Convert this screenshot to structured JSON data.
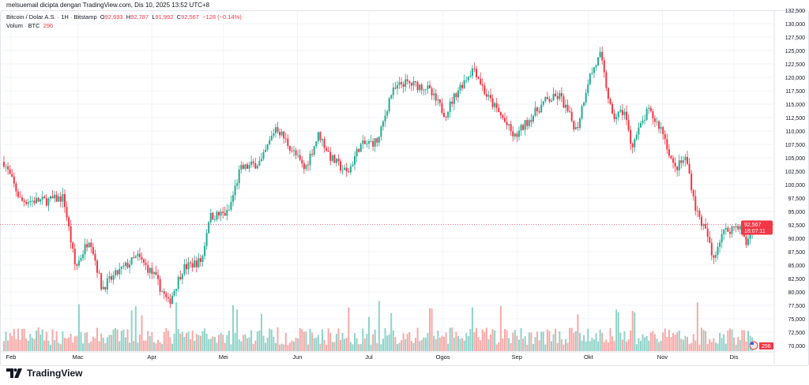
{
  "caption": "melsuemail dicipta dengan TradingView.com, Dis 10, 2025 13:52 UTC+8",
  "legend": {
    "symbol": "Bitcoin / Dolar A.S. · 1H · Bitstamp",
    "o_label": "O",
    "o": "92,693",
    "h_label": "H",
    "h": "92,787",
    "l_label": "L",
    "l": "91,992",
    "c_label": "C",
    "c": "92,567",
    "change": "−128 (−0.14%)",
    "volume_label": "Volum · BTC",
    "volume": "296"
  },
  "price_tag": {
    "price": "92,567",
    "countdown": "18:07:11"
  },
  "volume_tag": "296",
  "footer": {
    "brand": "TradingView"
  },
  "colors": {
    "up": "#22ab94",
    "down": "#f23645",
    "vol_up": "#8fd3c8",
    "vol_down": "#f7a9a7",
    "price_line": "#f23645"
  },
  "chart_data": {
    "type": "candlestick",
    "title": "Bitcoin / Dolar A.S. · 1H · Bitstamp",
    "yticks": [
      "132,500",
      "130,000",
      "127,500",
      "125,000",
      "122,500",
      "120,000",
      "117,500",
      "115,000",
      "112,500",
      "110,000",
      "107,500",
      "105,000",
      "102,500",
      "100,000",
      "97,500",
      "95,000",
      "92,500",
      "90,000",
      "87,500",
      "85,000",
      "82,500",
      "80,000",
      "77,500",
      "75,000",
      "72,500",
      "70,000"
    ],
    "ylim": [
      70000,
      132500
    ],
    "xticks": [
      "Feb",
      "Mac",
      "Apr",
      "Mei",
      "Jun",
      "Jul",
      "Ogos",
      "Sep",
      "Okt",
      "Nov",
      "Dis"
    ],
    "grid": true,
    "approx_close_path": [
      [
        "2025-01-29",
        104250
      ],
      [
        "2025-02-05",
        97000
      ],
      [
        "2025-02-16",
        97000
      ],
      [
        "2025-02-23",
        97600
      ],
      [
        "2025-02-28",
        84400
      ],
      [
        "2025-03-06",
        90300
      ],
      [
        "2025-03-11",
        80700
      ],
      [
        "2025-03-18",
        83700
      ],
      [
        "2025-03-26",
        86600
      ],
      [
        "2025-04-02",
        83000
      ],
      [
        "2025-04-08",
        77800
      ],
      [
        "2025-04-14",
        84400
      ],
      [
        "2025-04-22",
        85900
      ],
      [
        "2025-04-25",
        94000
      ],
      [
        "2025-05-03",
        94700
      ],
      [
        "2025-05-08",
        102800
      ],
      [
        "2025-05-17",
        104300
      ],
      [
        "2025-05-23",
        110900
      ],
      [
        "2025-06-01",
        105000
      ],
      [
        "2025-06-04",
        102800
      ],
      [
        "2025-06-10",
        109500
      ],
      [
        "2025-06-15",
        105000
      ],
      [
        "2025-06-22",
        102000
      ],
      [
        "2025-06-27",
        107200
      ],
      [
        "2025-07-05",
        108200
      ],
      [
        "2025-07-10",
        116800
      ],
      [
        "2025-07-15",
        119000
      ],
      [
        "2025-07-25",
        118200
      ],
      [
        "2025-08-02",
        113100
      ],
      [
        "2025-08-07",
        117500
      ],
      [
        "2025-08-14",
        121900
      ],
      [
        "2025-08-19",
        116800
      ],
      [
        "2025-08-26",
        112400
      ],
      [
        "2025-08-31",
        108700
      ],
      [
        "2025-09-05",
        111600
      ],
      [
        "2025-09-13",
        115600
      ],
      [
        "2025-09-19",
        116500
      ],
      [
        "2025-09-26",
        110100
      ],
      [
        "2025-10-01",
        119700
      ],
      [
        "2025-10-06",
        124100
      ],
      [
        "2025-10-11",
        112400
      ],
      [
        "2025-10-16",
        113800
      ],
      [
        "2025-10-19",
        107200
      ],
      [
        "2025-10-26",
        113800
      ],
      [
        "2025-11-01",
        110100
      ],
      [
        "2025-11-06",
        102800
      ],
      [
        "2025-11-11",
        105000
      ],
      [
        "2025-11-15",
        95400
      ],
      [
        "2025-11-20",
        90300
      ],
      [
        "2025-11-22",
        85900
      ],
      [
        "2025-11-26",
        91000
      ],
      [
        "2025-12-03",
        92500
      ],
      [
        "2025-12-06",
        88800
      ],
      [
        "2025-12-09",
        92567
      ]
    ]
  }
}
